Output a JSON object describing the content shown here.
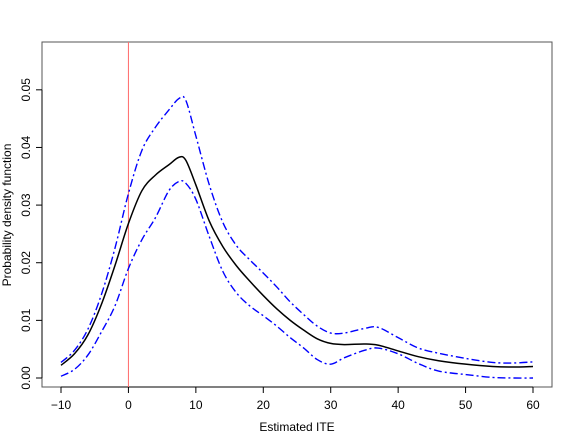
{
  "chart_data": {
    "type": "line",
    "title": "",
    "xlabel": "Estimated ITE",
    "ylabel": "Probability density function",
    "xlim": [
      -10,
      60
    ],
    "ylim": [
      0,
      0.055
    ],
    "x_ticks": [
      -10,
      0,
      10,
      20,
      30,
      40,
      50,
      60
    ],
    "x_tick_labels": [
      "−10",
      "0",
      "10",
      "20",
      "30",
      "40",
      "50",
      "60"
    ],
    "y_ticks": [
      0,
      0.01,
      0.02,
      0.03,
      0.04,
      0.05
    ],
    "y_tick_labels": [
      "0.00",
      "0.01",
      "0.02",
      "0.03",
      "0.04",
      "0.05"
    ],
    "grid": false,
    "legend": "none",
    "vline": {
      "x": 0,
      "color": "#ff6a6a"
    },
    "series": [
      {
        "style": "solid",
        "color": "#000000",
        "points": [
          [
            -10,
            0.0022
          ],
          [
            -8,
            0.0042
          ],
          [
            -6,
            0.0075
          ],
          [
            -4,
            0.0128
          ],
          [
            -2,
            0.0195
          ],
          [
            0,
            0.0268
          ],
          [
            2,
            0.0325
          ],
          [
            4,
            0.0352
          ],
          [
            6,
            0.037
          ],
          [
            7.5,
            0.0383
          ],
          [
            8.5,
            0.0378
          ],
          [
            10,
            0.0335
          ],
          [
            12,
            0.0272
          ],
          [
            14,
            0.0228
          ],
          [
            16,
            0.0195
          ],
          [
            18,
            0.0168
          ],
          [
            20,
            0.0143
          ],
          [
            22,
            0.012
          ],
          [
            24,
            0.01
          ],
          [
            26,
            0.0083
          ],
          [
            28,
            0.0068
          ],
          [
            30,
            0.006
          ],
          [
            32,
            0.0058
          ],
          [
            35,
            0.0059
          ],
          [
            37,
            0.0057
          ],
          [
            40,
            0.0047
          ],
          [
            43,
            0.0037
          ],
          [
            46,
            0.003
          ],
          [
            50,
            0.0024
          ],
          [
            54,
            0.002
          ],
          [
            57,
            0.0019
          ],
          [
            60,
            0.002
          ]
        ]
      },
      {
        "style": "dashdot",
        "color": "#0000ff",
        "points": [
          [
            -10,
            0.0027
          ],
          [
            -8,
            0.0048
          ],
          [
            -6,
            0.0085
          ],
          [
            -4,
            0.0145
          ],
          [
            -2,
            0.0225
          ],
          [
            0,
            0.032
          ],
          [
            2,
            0.0395
          ],
          [
            4,
            0.0435
          ],
          [
            6,
            0.0465
          ],
          [
            7.5,
            0.0485
          ],
          [
            8.5,
            0.0482
          ],
          [
            10,
            0.042
          ],
          [
            12,
            0.0335
          ],
          [
            14,
            0.027
          ],
          [
            16,
            0.023
          ],
          [
            18,
            0.0205
          ],
          [
            20,
            0.0182
          ],
          [
            22,
            0.0158
          ],
          [
            24,
            0.0132
          ],
          [
            26,
            0.011
          ],
          [
            28,
            0.009
          ],
          [
            30,
            0.0078
          ],
          [
            32,
            0.0078
          ],
          [
            35,
            0.0086
          ],
          [
            37,
            0.0088
          ],
          [
            40,
            0.007
          ],
          [
            43,
            0.0052
          ],
          [
            46,
            0.0043
          ],
          [
            50,
            0.0034
          ],
          [
            54,
            0.0027
          ],
          [
            57,
            0.0026
          ],
          [
            60,
            0.0028
          ]
        ]
      },
      {
        "style": "dashdot",
        "color": "#0000ff",
        "points": [
          [
            -10,
            0.0003
          ],
          [
            -8,
            0.0015
          ],
          [
            -6,
            0.004
          ],
          [
            -4,
            0.008
          ],
          [
            -2,
            0.0125
          ],
          [
            0,
            0.019
          ],
          [
            2,
            0.024
          ],
          [
            4,
            0.0278
          ],
          [
            6,
            0.0325
          ],
          [
            7.5,
            0.0341
          ],
          [
            8.5,
            0.0338
          ],
          [
            10,
            0.031
          ],
          [
            12,
            0.0245
          ],
          [
            14,
            0.0185
          ],
          [
            16,
            0.0148
          ],
          [
            18,
            0.0125
          ],
          [
            20,
            0.0108
          ],
          [
            22,
            0.009
          ],
          [
            24,
            0.007
          ],
          [
            26,
            0.0052
          ],
          [
            28,
            0.0032
          ],
          [
            30,
            0.0024
          ],
          [
            32,
            0.0035
          ],
          [
            35,
            0.0048
          ],
          [
            37,
            0.0052
          ],
          [
            40,
            0.0042
          ],
          [
            43,
            0.0025
          ],
          [
            46,
            0.0012
          ],
          [
            50,
            0.0006
          ],
          [
            54,
            0.0001
          ],
          [
            57,
            0.0
          ],
          [
            60,
            0.0
          ]
        ]
      }
    ]
  }
}
